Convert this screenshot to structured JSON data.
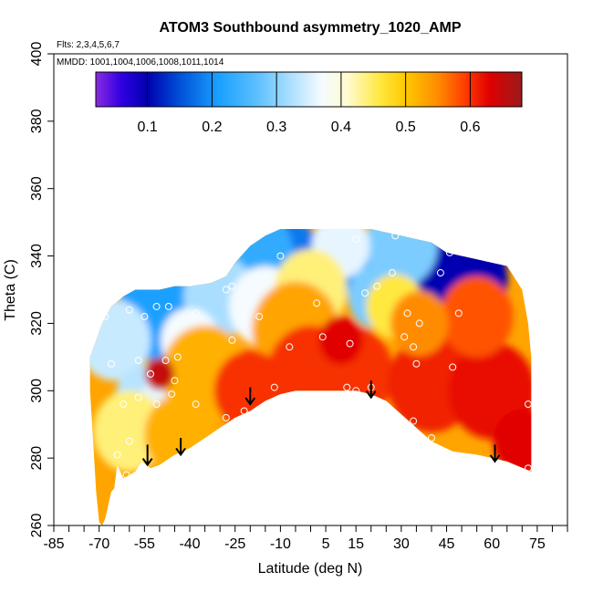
{
  "chart_data": {
    "type": "heatmap",
    "title": "ATOM3 Southbound asymmetry_1020_AMP",
    "notes": {
      "flights": "Flts: 2,3,4,5,6,7",
      "dates": "MMDD: 1001,1004,1006,1008,1011,1014"
    },
    "xlabel": "Latitude (deg N)",
    "ylabel": "Theta (C)",
    "xlim": [
      -85,
      85
    ],
    "ylim": [
      260,
      400
    ],
    "x_ticks": [
      -85,
      -70,
      -55,
      -40,
      -25,
      -10,
      5,
      15,
      30,
      45,
      60,
      75
    ],
    "x_minor_ticks": [
      -80,
      -75,
      -65,
      -60,
      -50,
      -45,
      -35,
      -30,
      -20,
      -15,
      -5,
      0,
      10,
      20,
      25,
      35,
      40,
      50,
      55,
      65,
      70,
      80,
      85
    ],
    "y_ticks": [
      260,
      280,
      300,
      320,
      340,
      360,
      380,
      400
    ],
    "colorbar": {
      "range": [
        0.02,
        0.68
      ],
      "ticks": [
        0.1,
        0.2,
        0.3,
        0.4,
        0.5,
        0.6
      ],
      "stops": [
        {
          "v": 0.02,
          "color": "#8a2be2"
        },
        {
          "v": 0.06,
          "color": "#3000e0"
        },
        {
          "v": 0.1,
          "color": "#0000b0"
        },
        {
          "v": 0.15,
          "color": "#0050d8"
        },
        {
          "v": 0.21,
          "color": "#1aa0ff"
        },
        {
          "v": 0.27,
          "color": "#5cc0ff"
        },
        {
          "v": 0.33,
          "color": "#b8e4ff"
        },
        {
          "v": 0.37,
          "color": "#f5fbff"
        },
        {
          "v": 0.41,
          "color": "#fffbd0"
        },
        {
          "v": 0.46,
          "color": "#ffe840"
        },
        {
          "v": 0.5,
          "color": "#ffc800"
        },
        {
          "v": 0.55,
          "color": "#ff8c00"
        },
        {
          "v": 0.59,
          "color": "#ff4000"
        },
        {
          "v": 0.63,
          "color": "#e00000"
        },
        {
          "v": 0.68,
          "color": "#9a1a1a"
        }
      ]
    },
    "coverage": {
      "upper": [
        [
          -73,
          310
        ],
        [
          -69,
          320
        ],
        [
          -66,
          325
        ],
        [
          -62,
          328
        ],
        [
          -58,
          330
        ],
        [
          -50,
          330
        ],
        [
          -45,
          331
        ],
        [
          -40,
          331
        ],
        [
          -33,
          332
        ],
        [
          -28,
          334
        ],
        [
          -25,
          338
        ],
        [
          -20,
          343
        ],
        [
          -15,
          346
        ],
        [
          -10,
          348
        ],
        [
          -5,
          348
        ],
        [
          0,
          348
        ],
        [
          10,
          348
        ],
        [
          20,
          348
        ],
        [
          25,
          347
        ],
        [
          30,
          346
        ],
        [
          35,
          345
        ],
        [
          40,
          344
        ],
        [
          45,
          341
        ],
        [
          50,
          340
        ],
        [
          55,
          339
        ],
        [
          60,
          338
        ],
        [
          65,
          337
        ],
        [
          70,
          330
        ],
        [
          72,
          320
        ],
        [
          73,
          310
        ],
        [
          73,
          298
        ]
      ],
      "lower": [
        [
          73,
          276
        ],
        [
          65,
          279
        ],
        [
          55,
          281
        ],
        [
          47,
          282
        ],
        [
          40,
          285
        ],
        [
          35,
          289
        ],
        [
          30,
          293
        ],
        [
          25,
          297
        ],
        [
          20,
          299
        ],
        [
          15,
          300
        ],
        [
          10,
          300
        ],
        [
          5,
          300
        ],
        [
          -5,
          300
        ],
        [
          -10,
          299
        ],
        [
          -15,
          297
        ],
        [
          -20,
          294
        ],
        [
          -25,
          292
        ],
        [
          -30,
          289
        ],
        [
          -35,
          286
        ],
        [
          -40,
          283
        ],
        [
          -45,
          281
        ],
        [
          -50,
          278
        ],
        [
          -53,
          277
        ],
        [
          -56,
          279
        ],
        [
          -58,
          276
        ],
        [
          -60,
          275
        ],
        [
          -62,
          274
        ],
        [
          -64,
          278
        ],
        [
          -65,
          271
        ],
        [
          -66,
          270
        ],
        [
          -68,
          262
        ],
        [
          -69,
          260
        ],
        [
          -70,
          261
        ],
        [
          -71,
          270
        ],
        [
          -72,
          285
        ],
        [
          -73,
          300
        ]
      ]
    },
    "sample_fields": [
      {
        "x": 46,
        "y": 333,
        "value": 0.1,
        "radius": 8
      },
      {
        "x": 53,
        "y": 333,
        "value": 0.1,
        "radius": 5
      },
      {
        "x": -8,
        "y": 336,
        "value": 0.18,
        "radius": 6
      },
      {
        "x": -20,
        "y": 340,
        "value": 0.23,
        "radius": 6
      },
      {
        "x": -50,
        "y": 323,
        "value": 0.21,
        "radius": 6
      },
      {
        "x": 18,
        "y": 333,
        "value": 0.19,
        "radius": 3
      },
      {
        "x": 20,
        "y": 334,
        "value": 0.21,
        "radius": 3
      },
      {
        "x": 22,
        "y": 328,
        "value": 0.29,
        "radius": 4
      },
      {
        "x": 30,
        "y": 343,
        "value": 0.29,
        "radius": 5
      },
      {
        "x": -30,
        "y": 328,
        "value": 0.32,
        "radius": 5
      },
      {
        "x": -65,
        "y": 315,
        "value": 0.34,
        "radius": 5
      },
      {
        "x": -55,
        "y": 298,
        "value": 0.33,
        "radius": 4
      },
      {
        "x": -47,
        "y": 296,
        "value": 0.36,
        "radius": 4
      },
      {
        "x": -40,
        "y": 315,
        "value": 0.37,
        "radius": 4
      },
      {
        "x": -15,
        "y": 325,
        "value": 0.37,
        "radius": 5
      },
      {
        "x": 10,
        "y": 343,
        "value": 0.36,
        "radius": 4
      },
      {
        "x": -60,
        "y": 288,
        "value": 0.44,
        "radius": 5
      },
      {
        "x": 0,
        "y": 330,
        "value": 0.44,
        "radius": 5
      },
      {
        "x": 28,
        "y": 325,
        "value": 0.46,
        "radius": 4
      },
      {
        "x": -35,
        "y": 305,
        "value": 0.52,
        "radius": 6
      },
      {
        "x": -5,
        "y": 318,
        "value": 0.53,
        "radius": 6
      },
      {
        "x": 13,
        "y": 305,
        "value": 0.6,
        "radius": 6
      },
      {
        "x": 0,
        "y": 305,
        "value": 0.6,
        "radius": 6
      },
      {
        "x": 40,
        "y": 302,
        "value": 0.61,
        "radius": 6
      },
      {
        "x": 60,
        "y": 300,
        "value": 0.62,
        "radius": 6
      },
      {
        "x": 70,
        "y": 285,
        "value": 0.63,
        "radius": 4
      },
      {
        "x": 55,
        "y": 322,
        "value": 0.58,
        "radius": 5
      },
      {
        "x": -50,
        "y": 305,
        "value": 0.65,
        "radius": 2
      },
      {
        "x": 10,
        "y": 315,
        "value": 0.63,
        "radius": 3
      },
      {
        "x": -20,
        "y": 300,
        "value": 0.6,
        "radius": 5
      },
      {
        "x": -43,
        "y": 287,
        "value": 0.52,
        "radius": 5
      },
      {
        "x": 36,
        "y": 320,
        "value": 0.55,
        "radius": 4
      }
    ],
    "points": [
      [
        -14,
        348
      ],
      [
        -9,
        349
      ],
      [
        -10,
        340
      ],
      [
        15,
        345
      ],
      [
        28,
        346
      ],
      [
        46,
        341
      ],
      [
        43,
        335
      ],
      [
        69,
        337
      ],
      [
        22,
        331
      ],
      [
        -28,
        330
      ],
      [
        -26,
        331
      ],
      [
        18,
        329
      ],
      [
        27,
        335
      ],
      [
        -60,
        324
      ],
      [
        -68,
        322
      ],
      [
        -55,
        322
      ],
      [
        -51,
        325
      ],
      [
        -47,
        325
      ],
      [
        -38,
        323
      ],
      [
        -17,
        322
      ],
      [
        2,
        326
      ],
      [
        32,
        323
      ],
      [
        36,
        320
      ],
      [
        49,
        323
      ],
      [
        -26,
        315
      ],
      [
        4,
        316
      ],
      [
        -7,
        313
      ],
      [
        13,
        314
      ],
      [
        31,
        316
      ],
      [
        34,
        313
      ],
      [
        35,
        308
      ],
      [
        -66,
        308
      ],
      [
        -57,
        309
      ],
      [
        -48,
        309
      ],
      [
        -53,
        305
      ],
      [
        -44,
        310
      ],
      [
        -46,
        299
      ],
      [
        -57,
        298
      ],
      [
        -51,
        296
      ],
      [
        -38,
        296
      ],
      [
        -12,
        301
      ],
      [
        12,
        301
      ],
      [
        15,
        300
      ],
      [
        20,
        301
      ],
      [
        47,
        307
      ],
      [
        -62,
        296
      ],
      [
        -45,
        303
      ],
      [
        72,
        296
      ],
      [
        -28,
        292
      ],
      [
        -22,
        294
      ],
      [
        34,
        291
      ],
      [
        40,
        286
      ],
      [
        -60,
        285
      ],
      [
        -64,
        281
      ],
      [
        72,
        277
      ],
      [
        -61,
        275
      ],
      [
        -56,
        277
      ]
    ],
    "arrows": [
      {
        "x": -54,
        "from": 284,
        "to": 278
      },
      {
        "x": -43,
        "from": 286,
        "to": 281
      },
      {
        "x": -20,
        "from": 301,
        "to": 296
      },
      {
        "x": 20,
        "from": 303,
        "to": 298
      },
      {
        "x": 61,
        "from": 284,
        "to": 279
      }
    ]
  }
}
